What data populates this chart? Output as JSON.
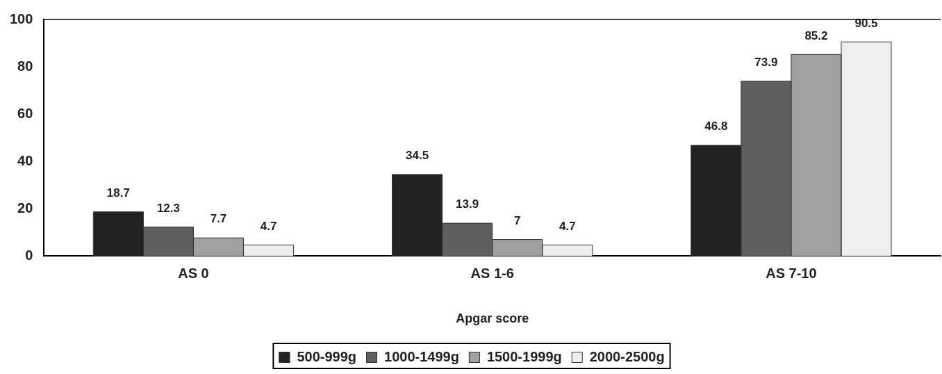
{
  "chart_data": {
    "type": "bar",
    "xlabel": "Apgar score",
    "categories": [
      "AS 0",
      "AS 1-6",
      "AS 7-10"
    ],
    "series": [
      {
        "name": "500-999g",
        "color": "#222222",
        "values": [
          18.7,
          34.5,
          46.8
        ]
      },
      {
        "name": "1000-1499g",
        "color": "#5e5e5e",
        "values": [
          12.3,
          13.9,
          73.9
        ]
      },
      {
        "name": "1500-1999g",
        "color": "#a0a0a0",
        "values": [
          7.7,
          7,
          85.2
        ]
      },
      {
        "name": "2000-2500g",
        "color": "#eeeeee",
        "values": [
          4.7,
          4.7,
          90.5
        ]
      }
    ],
    "ylim": [
      0,
      100
    ],
    "yticks": [
      0,
      20,
      40,
      60,
      80,
      100
    ],
    "grid": false,
    "legend": "bottom",
    "data_labels": true
  }
}
